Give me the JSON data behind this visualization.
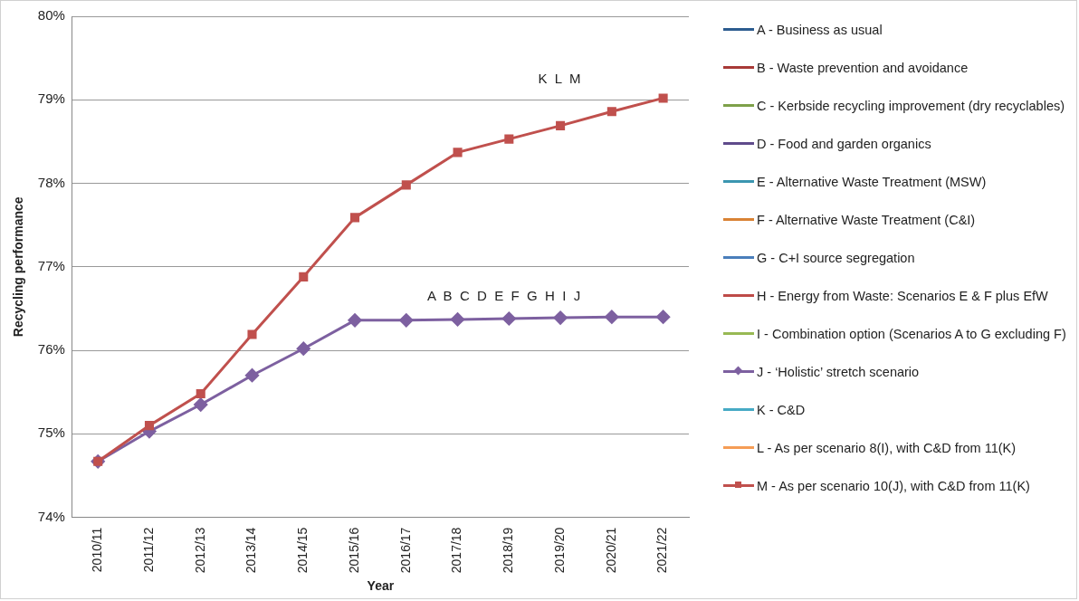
{
  "chart_data": {
    "type": "line",
    "xlabel": "Year",
    "ylabel": "Recycling performance",
    "categories": [
      "2010/11",
      "2011/12",
      "2012/13",
      "2013/14",
      "2014/15",
      "2015/16",
      "2016/17",
      "2017/18",
      "2018/19",
      "2019/20",
      "2020/21",
      "2021/22"
    ],
    "ylim": [
      74,
      80
    ],
    "yticks": [
      {
        "value": 74,
        "label": "74%"
      },
      {
        "value": 75,
        "label": "75%"
      },
      {
        "value": 76,
        "label": "76%"
      },
      {
        "value": 77,
        "label": "77%"
      },
      {
        "value": 78,
        "label": "78%"
      },
      {
        "value": 79,
        "label": "79%"
      },
      {
        "value": 80,
        "label": "80%"
      }
    ],
    "grid": "y",
    "legend": "right",
    "series": [
      {
        "name": "A - Business as usual",
        "color": "#2c5c8f",
        "marker": "none",
        "values": [
          null,
          null,
          null,
          null,
          null,
          null,
          null,
          null,
          null,
          null,
          null,
          null
        ]
      },
      {
        "name": "B - Waste prevention and avoidance",
        "color": "#a83a37",
        "marker": "none",
        "values": [
          null,
          null,
          null,
          null,
          null,
          null,
          null,
          null,
          null,
          null,
          null,
          null
        ]
      },
      {
        "name": "C - Kerbside recycling improvement (dry recyclables)",
        "color": "#7ea14a",
        "marker": "none",
        "values": [
          null,
          null,
          null,
          null,
          null,
          null,
          null,
          null,
          null,
          null,
          null,
          null
        ]
      },
      {
        "name": "D - Food and garden organics",
        "color": "#5f4b8b",
        "marker": "none",
        "values": [
          null,
          null,
          null,
          null,
          null,
          null,
          null,
          null,
          null,
          null,
          null,
          null
        ]
      },
      {
        "name": "E - Alternative Waste Treatment (MSW)",
        "color": "#3b96b0",
        "marker": "none",
        "values": [
          null,
          null,
          null,
          null,
          null,
          null,
          null,
          null,
          null,
          null,
          null,
          null
        ]
      },
      {
        "name": "F - Alternative Waste Treatment (C&I)",
        "color": "#d98234",
        "marker": "none",
        "values": [
          null,
          null,
          null,
          null,
          null,
          null,
          null,
          null,
          null,
          null,
          null,
          null
        ]
      },
      {
        "name": "G - C+I source segregation",
        "color": "#4a7ebb",
        "marker": "none",
        "values": [
          null,
          null,
          null,
          null,
          null,
          null,
          null,
          null,
          null,
          null,
          null,
          null
        ]
      },
      {
        "name": "H - Energy from Waste: Scenarios E & F plus EfW",
        "color": "#be4b48",
        "marker": "none",
        "values": [
          null,
          null,
          null,
          null,
          null,
          null,
          null,
          null,
          null,
          null,
          null,
          null
        ]
      },
      {
        "name": "I - Combination option (Scenarios A to G excluding F)",
        "color": "#98b954",
        "marker": "none",
        "values": [
          null,
          null,
          null,
          null,
          null,
          null,
          null,
          null,
          null,
          null,
          null,
          null
        ]
      },
      {
        "name": "J - ‘Holistic’ stretch scenario",
        "color": "#7d60a0",
        "marker": "diamond",
        "values": [
          74.67,
          75.03,
          75.35,
          75.7,
          76.02,
          76.36,
          76.36,
          76.37,
          76.38,
          76.39,
          76.4,
          76.4
        ]
      },
      {
        "name": "K - C&D",
        "color": "#46aac5",
        "marker": "none",
        "values": [
          null,
          null,
          null,
          null,
          null,
          null,
          null,
          null,
          null,
          null,
          null,
          null
        ]
      },
      {
        "name": "L - As per scenario 8(I), with C&D from 11(K)",
        "color": "#f59d56",
        "marker": "none",
        "values": [
          null,
          null,
          null,
          null,
          null,
          null,
          null,
          null,
          null,
          null,
          null,
          null
        ]
      },
      {
        "name": "M - As per scenario 10(J), with C&D from 11(K)",
        "color": "#c0504d",
        "marker": "square",
        "values": [
          74.67,
          75.1,
          75.48,
          76.19,
          76.88,
          77.59,
          77.98,
          78.37,
          78.53,
          78.69,
          78.86,
          79.02
        ]
      }
    ],
    "annotations": [
      "A  B  C  D  E  F  G  H  I  J",
      "K  L  M"
    ]
  }
}
